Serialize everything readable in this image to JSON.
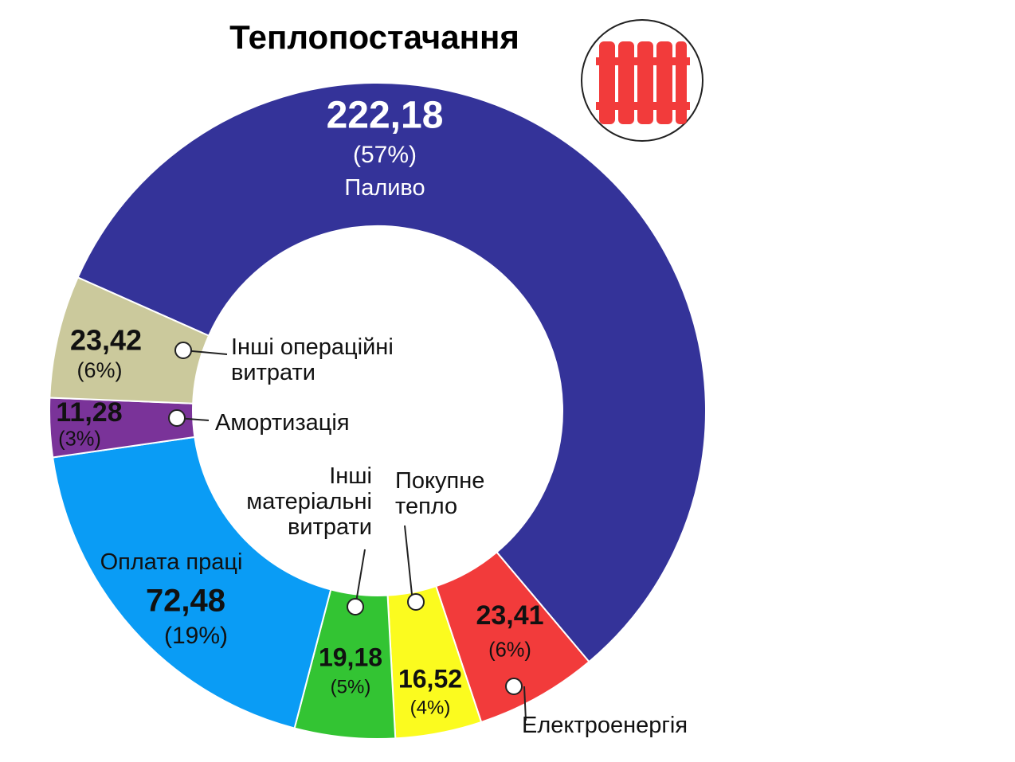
{
  "chart_data": {
    "type": "donut",
    "title": "Теплопостачання",
    "categories": [
      "Паливо",
      "Електроенергія",
      "Покупне тепло",
      "Інші матеріальні витрати",
      "Оплата праці",
      "Амортизація",
      "Інші операційні витрати"
    ],
    "values": [
      222.18,
      23.41,
      16.52,
      19.18,
      72.48,
      11.28,
      23.42
    ],
    "value_labels": [
      "222,18",
      "23,41",
      "16,52",
      "19,18",
      "72,48",
      "11,28",
      "23,42"
    ],
    "percent_labels": [
      "(57%)",
      "(6%)",
      "(4%)",
      "(5%)",
      "(19%)",
      "(3%)",
      "(6%)"
    ],
    "colors": [
      "#343399",
      "#f23b3b",
      "#fbfb1f",
      "#33c433",
      "#0a9cf5",
      "#7a3399",
      "#cbc99c"
    ]
  }
}
